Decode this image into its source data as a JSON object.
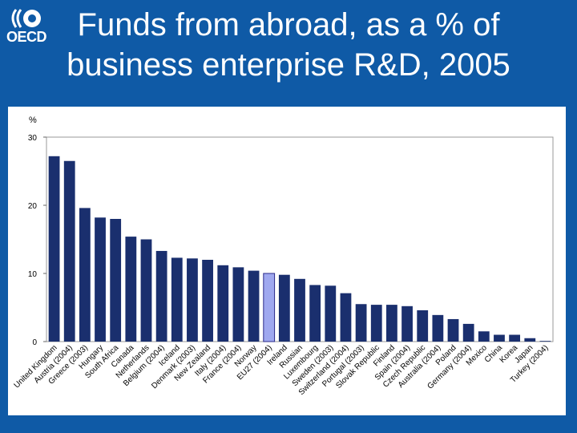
{
  "logo": {
    "text": "OECD"
  },
  "title": {
    "line1": "Funds from abroad, as a % of",
    "line2": "business enterprise R&D, 2005"
  },
  "colors": {
    "background": "#0f5aa6",
    "bar": "#1a2f6e",
    "bar_highlight": "#9fa8ef"
  },
  "chart_data": {
    "type": "bar",
    "ylabel": "%",
    "ylim": [
      0,
      30
    ],
    "yticks": [
      0,
      10,
      20,
      30
    ],
    "grid": false,
    "categories": [
      "United Kingdom",
      "Austria (2004)",
      "Greece (2003)",
      "Hungary",
      "South Africa",
      "Canada",
      "Netherlands",
      "Belgium (2004)",
      "Iceland",
      "Denmark (2003)",
      "New Zealand",
      "Italy (2004)",
      "France (2004)",
      "Norway",
      "EU27 (2004)",
      "Ireland",
      "Russian",
      "Luxembourg",
      "Sweden (2003)",
      "Switzerland (2004)",
      "Portugal (2003)",
      "Slovak Republic",
      "Finland",
      "Spain (2004)",
      "Czech Republic",
      "Australia (2004)",
      "Poland",
      "Germany (2004)",
      "Mexico",
      "China",
      "Korea",
      "Japan",
      "Turkey (2004)"
    ],
    "values": [
      27.2,
      26.5,
      19.6,
      18.2,
      18.0,
      15.4,
      15.0,
      13.3,
      12.3,
      12.2,
      12.0,
      11.2,
      10.9,
      10.4,
      10.0,
      9.8,
      9.2,
      8.3,
      8.2,
      7.1,
      5.5,
      5.4,
      5.4,
      5.2,
      4.6,
      3.9,
      3.3,
      2.6,
      1.5,
      1.0,
      1.0,
      0.5,
      0.1
    ],
    "highlight_index": 14
  }
}
